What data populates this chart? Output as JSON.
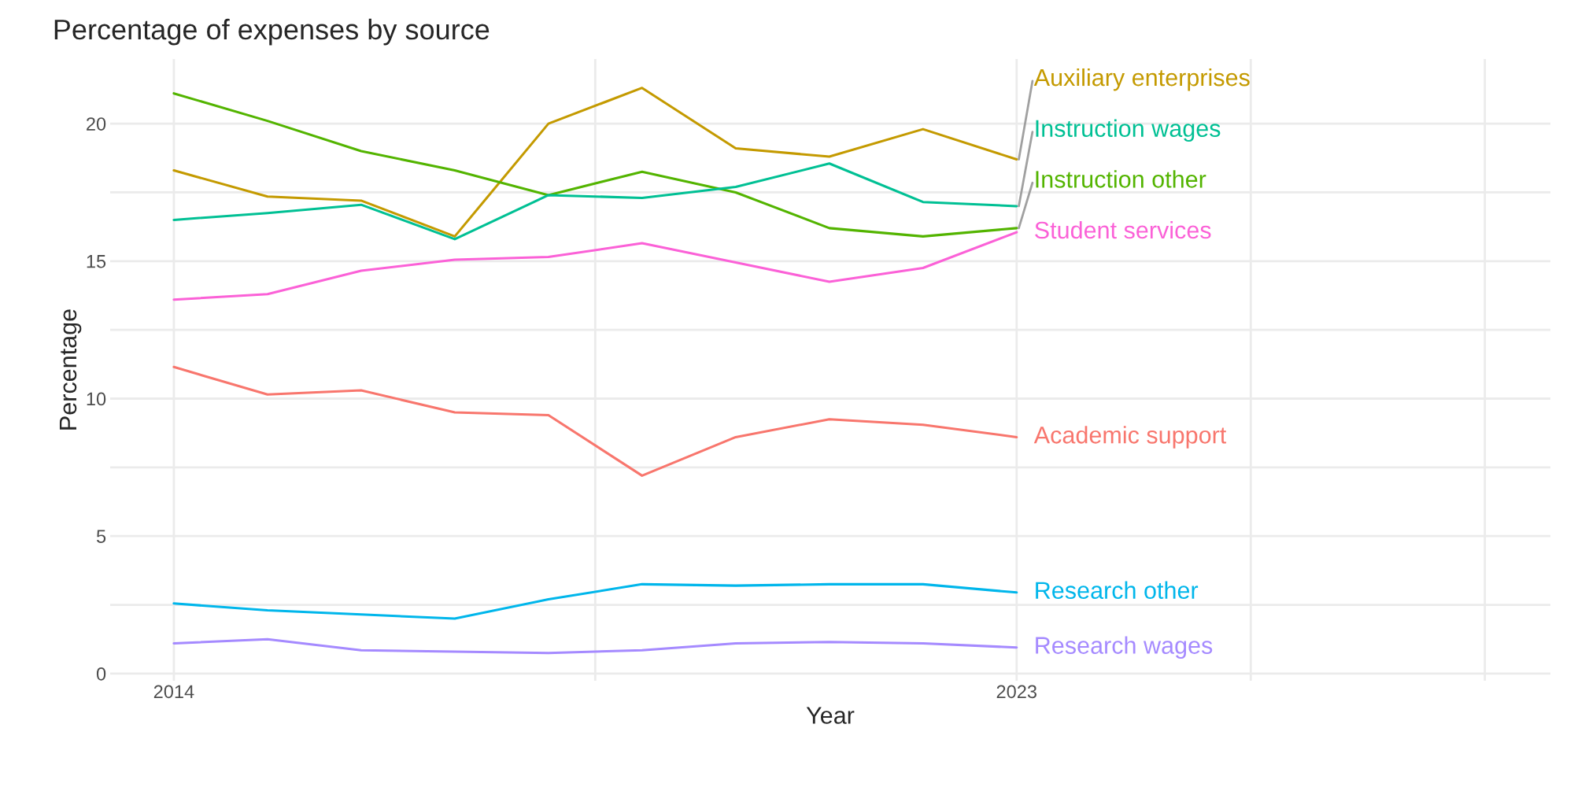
{
  "chart_data": {
    "type": "line",
    "title": "Percentage of expenses by source",
    "xlabel": "Year",
    "ylabel": "Percentage",
    "x": [
      2014,
      2015,
      2016,
      2017,
      2018,
      2019,
      2020,
      2021,
      2022,
      2023
    ],
    "series": [
      {
        "name": "Academic support",
        "color": "#F8766D",
        "values": [
          11.15,
          10.15,
          10.3,
          9.5,
          9.4,
          7.2,
          8.6,
          9.25,
          9.05,
          8.6
        ]
      },
      {
        "name": "Auxiliary enterprises",
        "color": "#C49A00",
        "values": [
          18.3,
          17.35,
          17.2,
          15.9,
          20.0,
          21.3,
          19.1,
          18.8,
          19.8,
          18.7
        ]
      },
      {
        "name": "Instruction other",
        "color": "#53B400",
        "values": [
          21.1,
          20.1,
          19.0,
          18.3,
          17.4,
          18.25,
          17.5,
          16.2,
          15.9,
          16.2
        ]
      },
      {
        "name": "Instruction wages",
        "color": "#00C094",
        "values": [
          16.5,
          16.75,
          17.05,
          15.8,
          17.4,
          17.3,
          17.7,
          18.55,
          17.15,
          17.0
        ]
      },
      {
        "name": "Research other",
        "color": "#00B6EB",
        "values": [
          2.55,
          2.3,
          2.15,
          2.0,
          2.7,
          3.25,
          3.2,
          3.25,
          3.25,
          2.95
        ]
      },
      {
        "name": "Research wages",
        "color": "#A58AFF",
        "values": [
          1.1,
          1.25,
          0.85,
          0.8,
          0.75,
          0.85,
          1.1,
          1.15,
          1.1,
          0.95
        ]
      },
      {
        "name": "Student services",
        "color": "#FB61D7",
        "values": [
          13.6,
          13.8,
          14.65,
          15.05,
          15.15,
          15.65,
          14.95,
          14.25,
          14.75,
          16.05
        ]
      }
    ],
    "xlim": [
      2013.32,
      2028.7
    ],
    "xticks": [
      2014,
      {
        "value": 2018.5,
        "label": null
      },
      2023,
      {
        "value": 2025.5,
        "label": null
      },
      {
        "value": 2028,
        "label": null
      }
    ],
    "ylim": [
      -0.26,
      22.35
    ],
    "yticks": [
      0,
      {
        "value": 2.5,
        "label": null
      },
      5,
      {
        "value": 7.5,
        "label": null
      },
      10,
      {
        "value": 12.5,
        "label": null
      },
      15,
      {
        "value": 17.5,
        "label": null
      },
      20
    ],
    "grid": true,
    "legend": false,
    "marker": "none",
    "line_style": "solid"
  }
}
